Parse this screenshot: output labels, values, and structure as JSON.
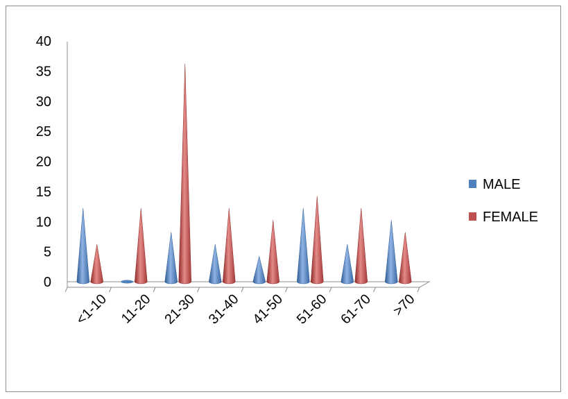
{
  "chart_data": {
    "type": "bar",
    "shape": "cone-3d",
    "categories": [
      "<1-10",
      "11-20",
      "21-30",
      "31-40",
      "41-50",
      "51-60",
      "61-70",
      ">70"
    ],
    "series": [
      {
        "name": "MALE",
        "values": [
          12,
          0,
          8,
          6,
          4,
          12,
          6,
          10
        ],
        "color": "#4F81BD"
      },
      {
        "name": "FEMALE",
        "values": [
          6,
          12,
          36,
          12,
          10,
          14,
          12,
          8
        ],
        "color": "#C0504D"
      }
    ],
    "yticks": [
      "0",
      "5",
      "10",
      "15",
      "20",
      "25",
      "30",
      "35",
      "40"
    ],
    "ylim": [
      0,
      40
    ],
    "grid": false,
    "legend_position": "right"
  }
}
